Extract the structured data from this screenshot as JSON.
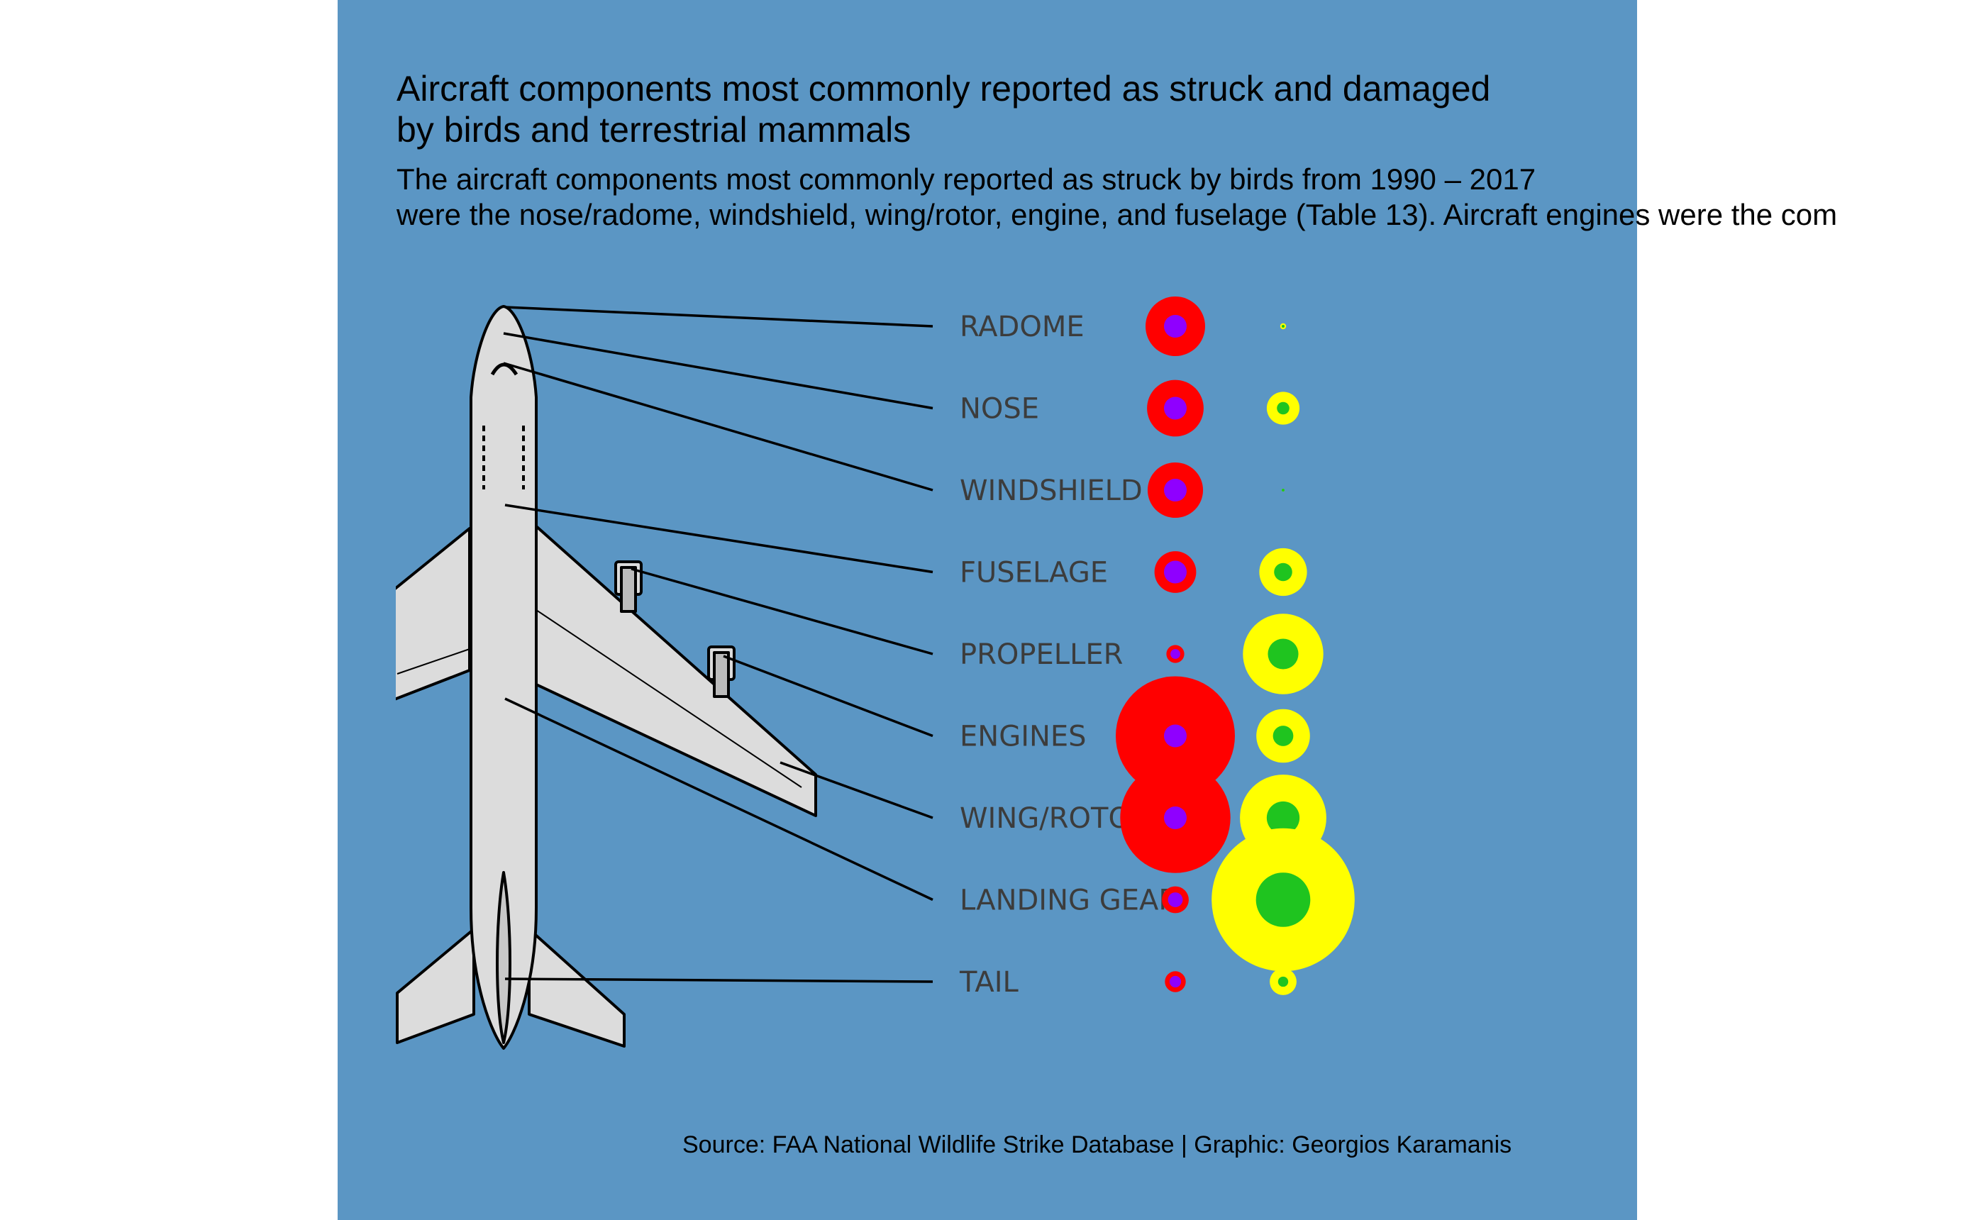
{
  "title_lines": [
    "Aircraft components most commonly reported as struck and damaged",
    "by birds and terrestrial mammals"
  ],
  "subtitle_lines": [
    "The aircraft components most commonly reported as struck by birds from 1990 – 2017",
    "were the nose/radome, windshield, wing/rotor, engine, and fuselage (Table 13). Aircraft engines were the com"
  ],
  "caption": "Source: FAA National Wildlife Strike Database | Graphic: Georgios Karamanis",
  "colors": {
    "background": "#5b96c4",
    "struck": "#ff0000",
    "struck_inner": "#8f00ff",
    "damaged": "#ffff00",
    "damaged_inner": "#1fc41f"
  },
  "chart_data": {
    "type": "scatter",
    "encoding": "bubble size per component; two concentric bubble columns",
    "categories": [
      "RADOME",
      "NOSE",
      "WINDSHIELD",
      "FUSELAGE",
      "PROPELLER",
      "ENGINES",
      "WING/ROTOR",
      "LANDING GEAR",
      "TAIL"
    ],
    "series": [
      {
        "values": [
          1.0,
          0.95,
          0.93,
          0.7,
          0.3,
          2.0,
          1.85,
          0.45,
          0.35
        ]
      },
      {
        "values": [
          0.1,
          0.55,
          0.03,
          0.8,
          1.35,
          0.9,
          1.45,
          2.4,
          0.45
        ]
      }
    ]
  }
}
